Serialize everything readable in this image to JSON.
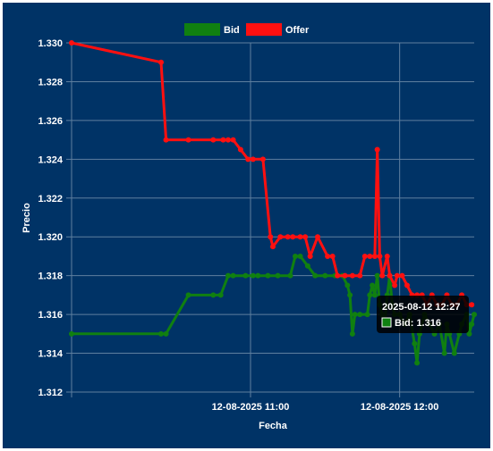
{
  "colors": {
    "background": "#003366",
    "grid": "#5f7f9f",
    "text": "#ffffff",
    "bid": "#108010",
    "offer": "#ff1010",
    "tooltip_bg": "#000000"
  },
  "tooltip": {
    "title": "2025-08-12 12:27",
    "line": "Bid: 1.316"
  },
  "chart_data": {
    "type": "line",
    "xlabel": "Fecha",
    "ylabel": "Precio",
    "x_tick_labels": [
      {
        "t": "11:00",
        "label": "12-08-2025 11:00"
      },
      {
        "t": "12:00",
        "label": "12-08-2025 12:00"
      }
    ],
    "y_ticks": [
      "1.312",
      "1.314",
      "1.316",
      "1.318",
      "1.320",
      "1.322",
      "1.324",
      "1.326",
      "1.328",
      "1.330"
    ],
    "xlim": [
      "09:48",
      "12:30"
    ],
    "ylim": [
      1.312,
      1.33
    ],
    "grid": true,
    "legend_position": "top",
    "series": [
      {
        "name": "Bid",
        "color": "#108010",
        "points": [
          [
            "09:48",
            1.315
          ],
          [
            "10:24",
            1.315
          ],
          [
            "10:26",
            1.315
          ],
          [
            "10:35",
            1.317
          ],
          [
            "10:45",
            1.317
          ],
          [
            "10:48",
            1.317
          ],
          [
            "10:51",
            1.318
          ],
          [
            "10:53",
            1.318
          ],
          [
            "10:58",
            1.318
          ],
          [
            "11:01",
            1.318
          ],
          [
            "11:03",
            1.318
          ],
          [
            "11:07",
            1.318
          ],
          [
            "11:11",
            1.318
          ],
          [
            "11:16",
            1.318
          ],
          [
            "11:18",
            1.319
          ],
          [
            "11:20",
            1.319
          ],
          [
            "11:23",
            1.3185
          ],
          [
            "11:26",
            1.318
          ],
          [
            "11:30",
            1.318
          ],
          [
            "11:34",
            1.318
          ],
          [
            "11:37",
            1.318
          ],
          [
            "11:39",
            1.3175
          ],
          [
            "11:40",
            1.317
          ],
          [
            "11:41",
            1.315
          ],
          [
            "11:42",
            1.316
          ],
          [
            "11:44",
            1.316
          ],
          [
            "11:47",
            1.316
          ],
          [
            "11:48",
            1.317
          ],
          [
            "11:49",
            1.3175
          ],
          [
            "11:50",
            1.317
          ],
          [
            "11:51",
            1.318
          ],
          [
            "11:52",
            1.3165
          ],
          [
            "11:53",
            1.316
          ],
          [
            "11:54",
            1.3155
          ],
          [
            "11:55",
            1.317
          ],
          [
            "11:56",
            1.318
          ],
          [
            "11:57",
            1.3165
          ],
          [
            "11:58",
            1.316
          ],
          [
            "12:00",
            1.316
          ],
          [
            "12:02",
            1.3155
          ],
          [
            "12:04",
            1.316
          ],
          [
            "12:06",
            1.3145
          ],
          [
            "12:07",
            1.3135
          ],
          [
            "12:08",
            1.315
          ],
          [
            "12:10",
            1.316
          ],
          [
            "12:12",
            1.3155
          ],
          [
            "12:14",
            1.315
          ],
          [
            "12:16",
            1.3155
          ],
          [
            "12:18",
            1.314
          ],
          [
            "12:19",
            1.3155
          ],
          [
            "12:20",
            1.315
          ],
          [
            "12:22",
            1.314
          ],
          [
            "12:24",
            1.315
          ],
          [
            "12:25",
            1.3155
          ],
          [
            "12:27",
            1.316
          ],
          [
            "12:28",
            1.315
          ],
          [
            "12:29",
            1.3155
          ],
          [
            "12:30",
            1.316
          ]
        ]
      },
      {
        "name": "Offer",
        "color": "#ff1010",
        "points": [
          [
            "09:48",
            1.33
          ],
          [
            "10:24",
            1.329
          ],
          [
            "10:26",
            1.325
          ],
          [
            "10:35",
            1.325
          ],
          [
            "10:45",
            1.325
          ],
          [
            "10:49",
            1.325
          ],
          [
            "10:51",
            1.325
          ],
          [
            "10:53",
            1.325
          ],
          [
            "10:56",
            1.3245
          ],
          [
            "10:59",
            1.324
          ],
          [
            "11:01",
            1.324
          ],
          [
            "11:05",
            1.324
          ],
          [
            "11:08",
            1.32
          ],
          [
            "11:09",
            1.3195
          ],
          [
            "11:12",
            1.32
          ],
          [
            "11:15",
            1.32
          ],
          [
            "11:17",
            1.32
          ],
          [
            "11:20",
            1.32
          ],
          [
            "11:22",
            1.32
          ],
          [
            "11:24",
            1.319
          ],
          [
            "11:27",
            1.32
          ],
          [
            "11:31",
            1.319
          ],
          [
            "11:33",
            1.319
          ],
          [
            "11:35",
            1.318
          ],
          [
            "11:38",
            1.318
          ],
          [
            "11:41",
            1.318
          ],
          [
            "11:44",
            1.318
          ],
          [
            "11:46",
            1.319
          ],
          [
            "11:48",
            1.319
          ],
          [
            "11:50",
            1.319
          ],
          [
            "11:51",
            1.3245
          ],
          [
            "11:52",
            1.319
          ],
          [
            "11:53",
            1.318
          ],
          [
            "11:55",
            1.319
          ],
          [
            "11:56",
            1.318
          ],
          [
            "11:58",
            1.3175
          ],
          [
            "11:59",
            1.318
          ],
          [
            "12:01",
            1.318
          ],
          [
            "12:03",
            1.3175
          ],
          [
            "12:05",
            1.317
          ],
          [
            "12:07",
            1.317
          ],
          [
            "12:09",
            1.317
          ],
          [
            "12:11",
            1.3165
          ],
          [
            "12:13",
            1.317
          ],
          [
            "12:15",
            1.3165
          ],
          [
            "12:17",
            1.3165
          ],
          [
            "12:19",
            1.317
          ],
          [
            "12:21",
            1.3165
          ],
          [
            "12:23",
            1.3165
          ],
          [
            "12:25",
            1.317
          ],
          [
            "12:27",
            1.3165
          ],
          [
            "12:29",
            1.3165
          ]
        ]
      }
    ]
  }
}
